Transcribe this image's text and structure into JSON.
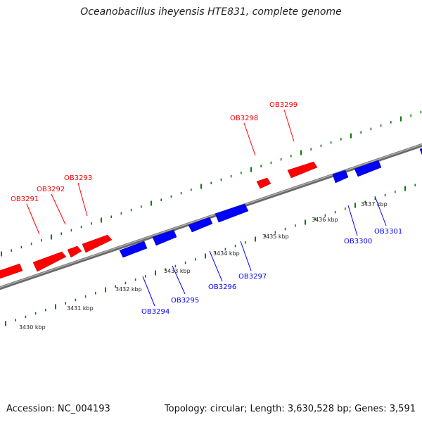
{
  "title": "Oceanobacillus iheyensis HTE831, complete genome",
  "footer": {
    "accession": "Accession: NC_004193",
    "summary": "Topology: circular; Length: 3,630,528 bp; Genes: 3,591"
  },
  "colors": {
    "forward": "#ff0000",
    "reverse": "#0000ff",
    "ticks": "#0a7a0a",
    "backbone": "#8a8a8a"
  },
  "kbp_labels": [
    "3430 kbp",
    "3431 kbp",
    "3432 kbp",
    "3433 kbp",
    "3434 kbp",
    "3435 kbp",
    "3436 kbp",
    "3437 kbp"
  ],
  "genes_forward": [
    "OB3291",
    "OB3292",
    "OB3293",
    "OB3298",
    "OB3299"
  ],
  "genes_reverse": [
    "OB3294",
    "OB3295",
    "OB3296",
    "OB3297",
    "OB3300",
    "OB3301"
  ]
}
